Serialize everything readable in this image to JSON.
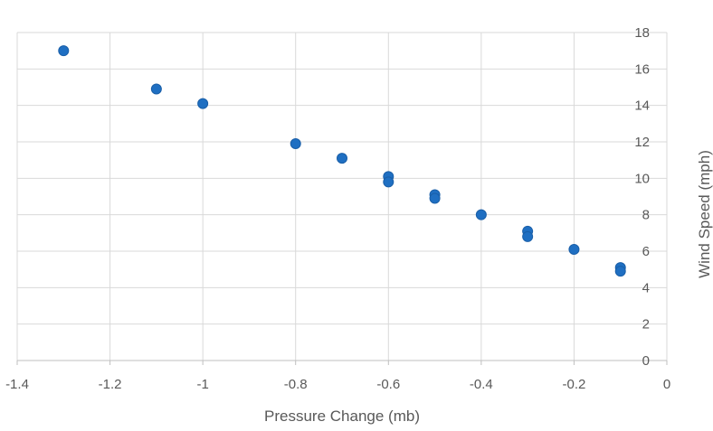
{
  "chart_data": {
    "type": "scatter",
    "title": "",
    "xlabel": "Pressure Change (mb)",
    "ylabel": "Wind Speed (mph)",
    "xlim": [
      -1.4,
      0
    ],
    "ylim": [
      0,
      18
    ],
    "x_ticks": [
      "-1.4",
      "-1.2",
      "-1",
      "-0.8",
      "-0.6",
      "-0.4",
      "-0.2",
      "0"
    ],
    "y_ticks": [
      "0",
      "2",
      "4",
      "6",
      "8",
      "10",
      "12",
      "14",
      "16",
      "18"
    ],
    "grid": true,
    "y_axis_position": "right",
    "series": [
      {
        "color": "#1f6fc2",
        "points": [
          {
            "x": -1.3,
            "y": 17.0
          },
          {
            "x": -1.1,
            "y": 14.9
          },
          {
            "x": -1.0,
            "y": 14.1
          },
          {
            "x": -0.8,
            "y": 11.9
          },
          {
            "x": -0.7,
            "y": 11.1
          },
          {
            "x": -0.6,
            "y": 10.1
          },
          {
            "x": -0.6,
            "y": 9.8
          },
          {
            "x": -0.5,
            "y": 9.1
          },
          {
            "x": -0.5,
            "y": 8.9
          },
          {
            "x": -0.4,
            "y": 8.0
          },
          {
            "x": -0.3,
            "y": 7.1
          },
          {
            "x": -0.3,
            "y": 6.8
          },
          {
            "x": -0.2,
            "y": 6.1
          },
          {
            "x": -0.1,
            "y": 5.1
          },
          {
            "x": -0.1,
            "y": 4.9
          }
        ]
      }
    ]
  }
}
